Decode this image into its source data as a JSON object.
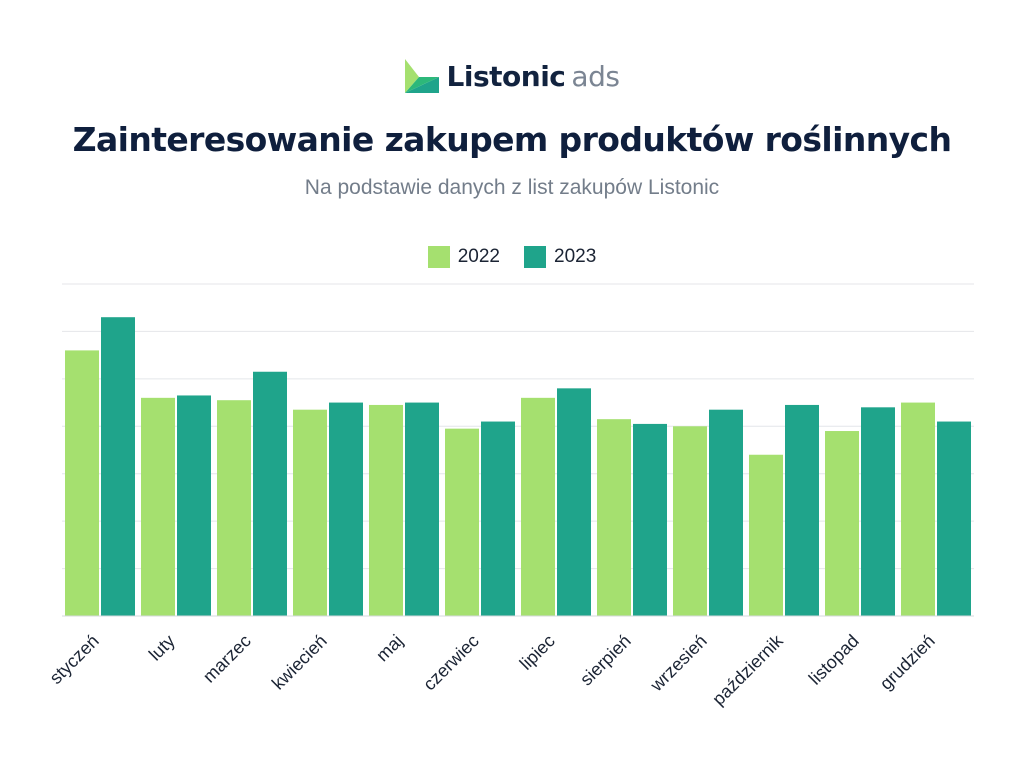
{
  "brand": {
    "name": "Listonic",
    "suffix": "ads",
    "colors": {
      "light": "#a5e06f",
      "dark": "#1fa48b",
      "navy": "#12233f"
    }
  },
  "chart_data": {
    "type": "bar",
    "title": "Zainteresowanie zakupem produktów roślinnych",
    "subtitle": "Na podstawie danych z list zakupów Listonic",
    "xlabel": "",
    "ylabel": "",
    "categories": [
      "styczeń",
      "luty",
      "marzec",
      "kwiecień",
      "maj",
      "czerwiec",
      "lipiec",
      "sierpień",
      "wrzesień",
      "październik",
      "listopad",
      "grudzień"
    ],
    "series": [
      {
        "name": "2022",
        "color": "#a5e06f",
        "values": [
          5.6,
          4.6,
          4.55,
          4.35,
          4.45,
          3.95,
          4.6,
          4.15,
          4.0,
          3.4,
          3.9,
          4.5
        ]
      },
      {
        "name": "2023",
        "color": "#1fa48b",
        "values": [
          6.3,
          4.65,
          5.15,
          4.5,
          4.5,
          4.1,
          4.8,
          4.05,
          4.35,
          4.45,
          4.4,
          4.1
        ]
      }
    ],
    "ylim": [
      0,
      7
    ],
    "grid": true,
    "legend_position": "top-center",
    "show_y_tick_labels": false
  }
}
